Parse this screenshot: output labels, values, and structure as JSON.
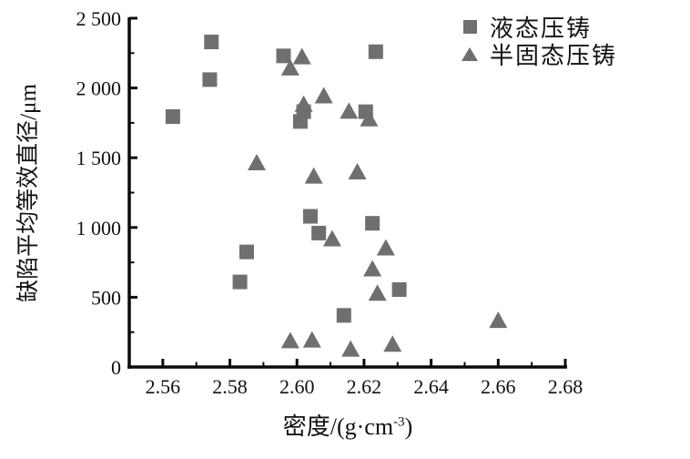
{
  "figure": {
    "background": "#ffffff",
    "marker_color": "#6f6f6f",
    "axis_color": "#0a0a0a"
  },
  "legend": {
    "items": [
      {
        "label": "液态压铸",
        "marker": "square"
      },
      {
        "label": "半固态压铸",
        "marker": "triangle"
      }
    ]
  },
  "axes": {
    "y_title": "缺陷平均等效直径/μm",
    "x_title": {
      "prefix": "密度/(g·cm",
      "sup": "-3",
      "suffix": ")"
    },
    "x_tick_labels": [
      "2.56",
      "2.58",
      "2.60",
      "2.62",
      "2.64",
      "2.66",
      "2.68"
    ],
    "y_tick_labels": [
      "0",
      "500",
      "1 000",
      "1 500",
      "2 000",
      "2 500"
    ]
  },
  "chart_data": {
    "type": "scatter",
    "title": "",
    "xlabel": "密度/(g·cm⁻³)",
    "ylabel": "缺陷平均等效直径/μm",
    "xlim": [
      2.55,
      2.68
    ],
    "ylim": [
      0,
      2500
    ],
    "x_major_ticks": [
      2.56,
      2.58,
      2.6,
      2.62,
      2.64,
      2.66,
      2.68
    ],
    "x_minor_ticks": [
      2.57,
      2.59,
      2.61,
      2.63,
      2.65,
      2.67
    ],
    "y_major_ticks": [
      0,
      500,
      1000,
      1500,
      2000,
      2500
    ],
    "y_minor_ticks": [
      250,
      750,
      1250,
      1750,
      2250
    ],
    "grid": false,
    "legend_position": "top-right",
    "series": [
      {
        "id": "liquid",
        "name": "液态压铸",
        "marker": "square",
        "points": [
          [
            2.5745,
            2330
          ],
          [
            2.574,
            2060
          ],
          [
            2.563,
            1795
          ],
          [
            2.596,
            2230
          ],
          [
            2.6235,
            2260
          ],
          [
            2.602,
            1830
          ],
          [
            2.601,
            1760
          ],
          [
            2.6205,
            1830
          ],
          [
            2.604,
            1080
          ],
          [
            2.6065,
            960
          ],
          [
            2.6225,
            1030
          ],
          [
            2.585,
            825
          ],
          [
            2.583,
            610
          ],
          [
            2.6305,
            555
          ],
          [
            2.614,
            370
          ]
        ]
      },
      {
        "id": "semisolid",
        "name": "半固态压铸",
        "marker": "triangle",
        "points": [
          [
            2.598,
            2145
          ],
          [
            2.6015,
            2225
          ],
          [
            2.602,
            1885
          ],
          [
            2.608,
            1945
          ],
          [
            2.6155,
            1835
          ],
          [
            2.6215,
            1780
          ],
          [
            2.588,
            1465
          ],
          [
            2.605,
            1370
          ],
          [
            2.618,
            1400
          ],
          [
            2.6105,
            920
          ],
          [
            2.6225,
            705
          ],
          [
            2.624,
            530
          ],
          [
            2.6265,
            855
          ],
          [
            2.598,
            190
          ],
          [
            2.6045,
            195
          ],
          [
            2.616,
            130
          ],
          [
            2.6285,
            165
          ],
          [
            2.66,
            335
          ]
        ]
      }
    ]
  }
}
